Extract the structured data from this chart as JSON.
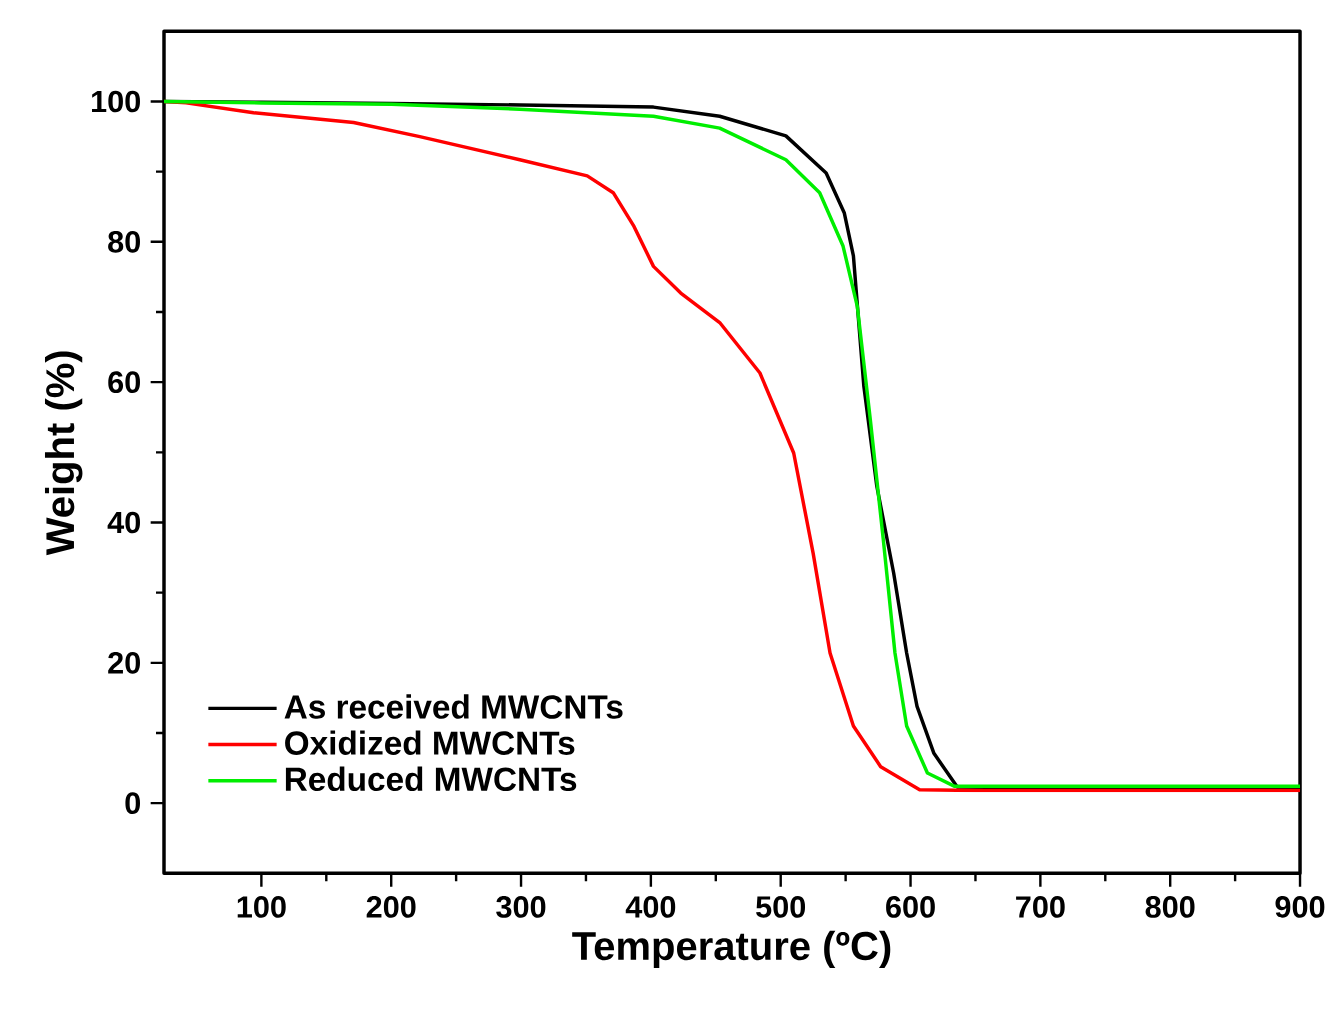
{
  "chart_data": {
    "type": "line",
    "xlabel": "Temperature (ºC)",
    "ylabel": "Weight (%)",
    "xlim": [
      25,
      900
    ],
    "ylim": [
      -10,
      110
    ],
    "xticks": [
      100,
      200,
      300,
      400,
      500,
      600,
      700,
      800,
      900
    ],
    "yticks": [
      0,
      20,
      40,
      60,
      80,
      100
    ],
    "legend": "bottom left",
    "grid": false,
    "marker": "none",
    "line_style": "solid",
    "series": [
      {
        "name": "As received MWCNTs",
        "color": "#000000",
        "x": [
          25,
          100,
          200,
          300,
          402,
          453,
          504,
          535,
          549,
          556,
          564,
          574,
          587,
          597,
          605,
          618,
          636,
          700,
          800,
          900
        ],
        "values": [
          100,
          99.9,
          99.7,
          99.5,
          99.2,
          97.9,
          95.1,
          89.8,
          84.1,
          78,
          59.5,
          45.2,
          32.8,
          21.4,
          13.8,
          7.1,
          2.3,
          2.2,
          2.2,
          2.2
        ]
      },
      {
        "name": "Oxidized MWCNTs",
        "color": "#ff0000",
        "x": [
          25,
          42,
          94,
          171,
          222,
          299,
          351,
          371,
          387,
          402,
          423,
          453,
          484,
          510,
          525,
          538,
          556,
          577,
          607,
          650,
          800,
          900
        ],
        "values": [
          100,
          99.8,
          98.4,
          97,
          95,
          91.7,
          89.4,
          87,
          82.2,
          76.5,
          72.7,
          68.5,
          61.3,
          49.9,
          35.6,
          21.4,
          11,
          5.2,
          1.9,
          1.8,
          1.8,
          1.8
        ]
      },
      {
        "name": "Reduced MWCNTs",
        "color": "#00ee00",
        "x": [
          25,
          100,
          200,
          299,
          402,
          453,
          504,
          530,
          548,
          559,
          569,
          579,
          588,
          597,
          613,
          634,
          700,
          800,
          900
        ],
        "values": [
          100,
          99.8,
          99.6,
          98.9,
          97.9,
          96.2,
          91.7,
          87,
          79.4,
          70.8,
          54.7,
          37.6,
          21.4,
          11,
          4.3,
          2.4,
          2.4,
          2.4,
          2.4
        ]
      }
    ]
  }
}
